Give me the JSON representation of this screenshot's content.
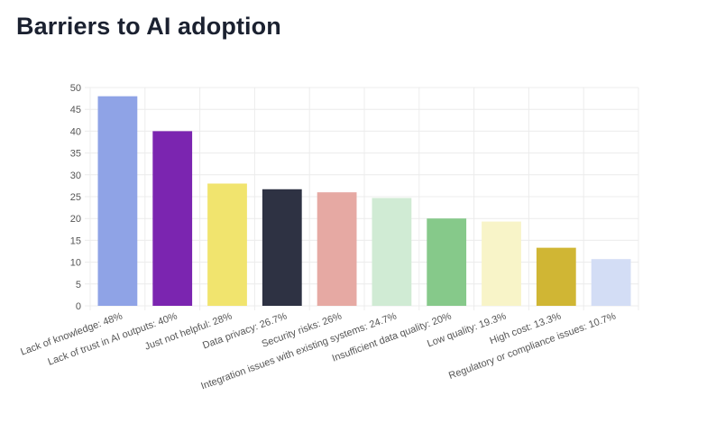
{
  "page": {
    "title": "Barriers to AI adoption"
  },
  "chart_data": {
    "type": "bar",
    "title": "Barriers to AI adoption",
    "xlabel": "",
    "ylabel": "",
    "ylim": [
      0,
      50
    ],
    "yticks": [
      0,
      5,
      10,
      15,
      20,
      25,
      30,
      35,
      40,
      45,
      50
    ],
    "grid": true,
    "legend": "none",
    "categories": [
      "Lack of knowledge: 48%",
      "Lack of trust in AI outputs: 40%",
      "Just not helpful: 28%",
      "Data privacy: 26.7%",
      "Security risks: 26%",
      "Integration issues with existing systems: 24.7%",
      "Insufficient data quality: 20%",
      "Low quality: 19.3%",
      "High cost: 13.3%",
      "Regulatory or compliance issues: 10.7%"
    ],
    "values": [
      48,
      40,
      28,
      26.7,
      26,
      24.7,
      20,
      19.3,
      13.3,
      10.7
    ],
    "colors": [
      "#8fa3e6",
      "#7b25b0",
      "#f1e46e",
      "#2e3243",
      "#e6a9a3",
      "#d0ebd4",
      "#86c98a",
      "#f8f4c8",
      "#d0b634",
      "#d3ddf5"
    ]
  }
}
